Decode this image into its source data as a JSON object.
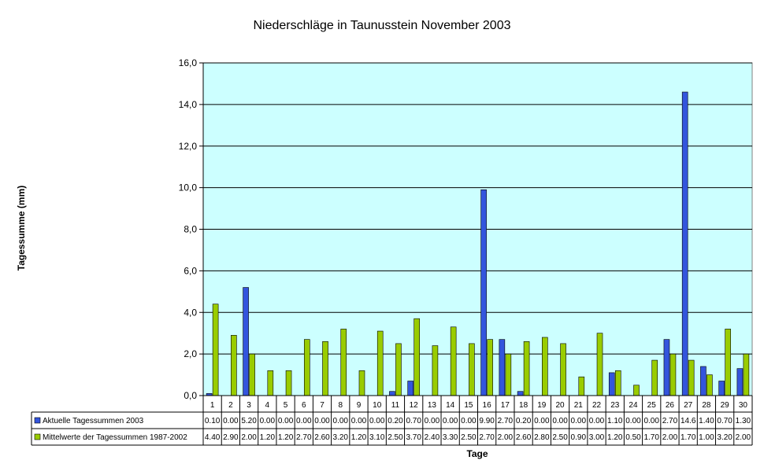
{
  "chart_data": {
    "type": "bar",
    "title": "Niederschläge in Taunusstein November 2003",
    "xlabel": "Tage",
    "ylabel": "Tagessumme (mm)",
    "ylim": [
      0,
      16
    ],
    "yticks": [
      "0,0",
      "2,0",
      "4,0",
      "6,0",
      "8,0",
      "10,0",
      "12,0",
      "14,0",
      "16,0"
    ],
    "grid": true,
    "legend": "data-table",
    "plot_background": "#ccffff",
    "categories": [
      "1",
      "2",
      "3",
      "4",
      "5",
      "6",
      "7",
      "8",
      "9",
      "10",
      "11",
      "12",
      "13",
      "14",
      "15",
      "16",
      "17",
      "18",
      "19",
      "20",
      "21",
      "22",
      "23",
      "24",
      "25",
      "26",
      "27",
      "28",
      "29",
      "30"
    ],
    "series": [
      {
        "name": "Aktuelle Tagessummen  2003",
        "color": "#3355dd",
        "values": [
          0.1,
          0,
          5.2,
          0,
          0,
          0,
          0,
          0,
          0,
          0,
          0.2,
          0.7,
          0,
          0,
          0,
          9.9,
          2.7,
          0.2,
          0,
          0,
          0,
          0,
          1.1,
          0,
          0,
          2.7,
          14.6,
          1.4,
          0.7,
          1.3
        ],
        "labels": [
          "0.10",
          "0.00",
          "5.20",
          "0.00",
          "0.00",
          "0.00",
          "0.00",
          "0.00",
          "0.00",
          "0.00",
          "0.20",
          "0.70",
          "0.00",
          "0.00",
          "0.00",
          "9.90",
          "2.70",
          "0.20",
          "0.00",
          "0.00",
          "0.00",
          "0.00",
          "1.10",
          "0.00",
          "0.00",
          "2.70",
          "14.6",
          "1.40",
          "0.70",
          "1.30"
        ]
      },
      {
        "name": "Mittelwerte der Tagessummen 1987-2002",
        "color": "#99cc00",
        "values": [
          4.4,
          2.9,
          2,
          1.2,
          1.2,
          2.7,
          2.6,
          3.2,
          1.2,
          3.1,
          2.5,
          3.7,
          2.4,
          3.3,
          2.5,
          2.7,
          2,
          2.6,
          2.8,
          2.5,
          0.9,
          3,
          1.2,
          0.5,
          1.7,
          2,
          1.7,
          1,
          3.2,
          2
        ],
        "labels": [
          "4.40",
          "2.90",
          "2.00",
          "1.20",
          "1.20",
          "2.70",
          "2.60",
          "3.20",
          "1.20",
          "3.10",
          "2.50",
          "3.70",
          "2.40",
          "3.30",
          "2.50",
          "2.70",
          "2.00",
          "2.60",
          "2.80",
          "2.50",
          "0.90",
          "3.00",
          "1.20",
          "0.50",
          "1.70",
          "2.00",
          "1.70",
          "1.00",
          "3.20",
          "2.00"
        ]
      }
    ]
  }
}
